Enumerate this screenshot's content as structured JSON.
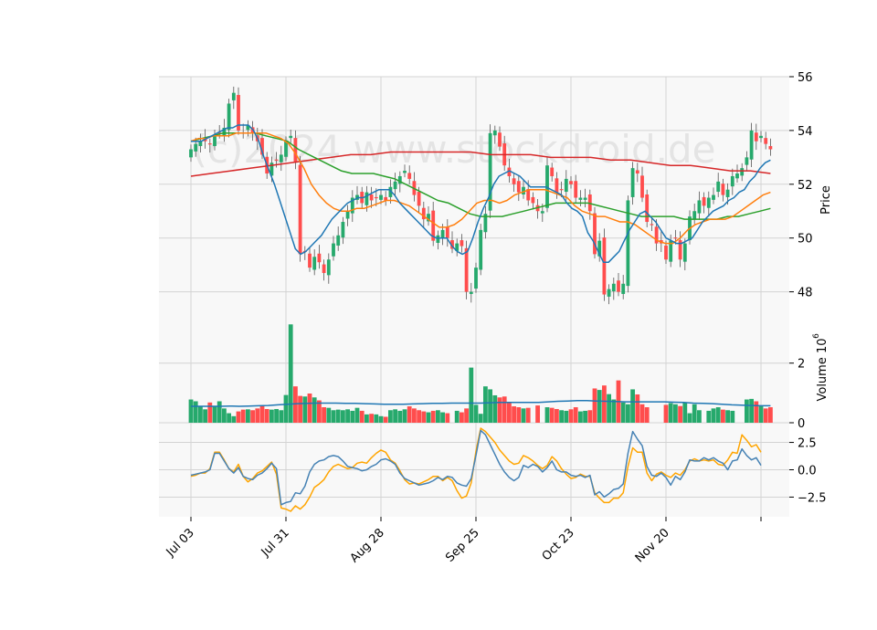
{
  "chart_data": {
    "type": "candlestick",
    "watermark": "(c)2024 www.stockdroid.de",
    "colors": {
      "up": "#26a96c",
      "down": "#ff4d4d",
      "ma_fast": "#1f77b4",
      "ma_mid": "#ff7f0e",
      "ma_slow": "#2ca02c",
      "ma_long": "#d62728",
      "vol_ma": "#1f77b4",
      "macd": "#4682b4",
      "signal": "#ffa500",
      "panel_bg": "#f8f8f8",
      "grid": "#d3d3d3"
    },
    "x_ticks": [
      {
        "i": 0,
        "label": "Jul 03"
      },
      {
        "i": 20,
        "label": "Jul 31"
      },
      {
        "i": 40,
        "label": "Aug 28"
      },
      {
        "i": 60,
        "label": "Sep 25"
      },
      {
        "i": 80,
        "label": "Oct 23"
      },
      {
        "i": 100,
        "label": "Nov 20"
      },
      {
        "i": 120,
        "label": ""
      }
    ],
    "price_panel": {
      "ylabel": "Price",
      "ylim": [
        46.9,
        56.0
      ],
      "yticks": [
        48,
        50,
        52,
        54,
        56
      ],
      "closes": [
        53.3,
        53.5,
        53.6,
        53.6,
        53.5,
        53.8,
        53.9,
        54.1,
        55.0,
        55.4,
        54.0,
        53.9,
        54.2,
        53.9,
        53.6,
        53.1,
        52.4,
        52.8,
        52.9,
        53.1,
        53.6,
        53.8,
        52.8,
        49.4,
        49.5,
        48.9,
        49.3,
        49.1,
        48.7,
        49.2,
        49.8,
        50.1,
        50.6,
        51.0,
        51.5,
        51.6,
        51.3,
        51.7,
        51.4,
        51.5,
        51.6,
        51.4,
        51.9,
        52.1,
        52.3,
        52.5,
        52.2,
        51.6,
        51.2,
        50.7,
        50.9,
        49.9,
        50.1,
        50.3,
        50.0,
        49.6,
        49.8,
        49.7,
        48.0,
        48.0,
        48.9,
        50.3,
        50.9,
        53.9,
        54.0,
        53.4,
        52.7,
        52.3,
        52.0,
        51.7,
        51.9,
        51.4,
        51.3,
        51.0,
        51.0,
        52.7,
        52.3,
        51.7,
        51.8,
        52.2,
        52.0,
        51.5,
        51.5,
        51.5,
        51.0,
        49.4,
        49.9,
        47.9,
        48.1,
        48.3,
        48.0,
        48.3,
        51.4,
        52.6,
        52.4,
        51.5,
        50.6,
        50.5,
        49.8,
        49.8,
        49.2,
        49.9,
        50.0,
        49.2,
        49.8,
        50.8,
        51.0,
        51.4,
        51.2,
        51.5,
        51.6,
        52.1,
        51.6,
        51.8,
        52.3,
        52.4,
        52.6,
        53.0,
        54.0,
        53.6,
        53.8,
        53.5,
        53.3
      ],
      "ma_fast": [
        53.6,
        53.6,
        53.6,
        53.7,
        53.8,
        53.9,
        54.0,
        54.1,
        54.1,
        54.2,
        54.2,
        54.2,
        54.0,
        53.6,
        53.0,
        52.5,
        52.0,
        51.4,
        50.8,
        50.2,
        49.6,
        49.4,
        49.5,
        49.7,
        49.9,
        50.1,
        50.4,
        50.7,
        50.9,
        51.1,
        51.3,
        51.4,
        51.5,
        51.5,
        51.6,
        51.7,
        51.8,
        51.8,
        51.8,
        51.6,
        51.3,
        51.1,
        50.9,
        50.7,
        50.5,
        50.3,
        50.1,
        50.0,
        50.0,
        50.0,
        49.7,
        49.5,
        49.4,
        49.5,
        50.0,
        50.6,
        51.1,
        51.5,
        52.0,
        52.3,
        52.4,
        52.5,
        52.4,
        52.3,
        52.1,
        51.9,
        51.9,
        51.9,
        51.9,
        51.8,
        51.7,
        51.6,
        51.3,
        51.1,
        51.0,
        50.8,
        50.2,
        49.9,
        49.5,
        49.1,
        49.1,
        49.3,
        49.5,
        49.9,
        50.3,
        50.6,
        50.9,
        51.0,
        50.8,
        50.6,
        50.3,
        50.0,
        49.9,
        49.8,
        49.8,
        49.9,
        50.0,
        50.3,
        50.6,
        50.8,
        51.0,
        51.1,
        51.2,
        51.4,
        51.5,
        51.7,
        51.8,
        52.1,
        52.3,
        52.6,
        52.8,
        52.9
      ],
      "ma_mid": [
        53.6,
        53.7,
        53.7,
        53.8,
        53.8,
        53.8,
        53.9,
        53.9,
        53.9,
        53.9,
        53.9,
        53.8,
        53.7,
        53.5,
        53.1,
        52.6,
        52.0,
        51.6,
        51.3,
        51.1,
        51.0,
        51.0,
        51.1,
        51.1,
        51.2,
        51.3,
        51.4,
        51.4,
        51.3,
        51.2,
        51.0,
        50.8,
        50.6,
        50.4,
        50.4,
        50.5,
        50.7,
        51.0,
        51.3,
        51.4,
        51.4,
        51.3,
        51.4,
        51.6,
        51.7,
        51.8,
        51.8,
        51.8,
        51.7,
        51.6,
        51.5,
        51.2,
        51.0,
        50.9,
        50.8,
        50.8,
        50.7,
        50.6,
        50.6,
        50.5,
        50.3,
        50.1,
        49.9,
        49.8,
        49.8,
        50.0,
        50.3,
        50.5,
        50.6,
        50.7,
        50.7,
        50.7,
        50.8,
        51.0,
        51.2,
        51.4,
        51.6,
        51.7
      ],
      "ma_slow": [
        53.6,
        53.7,
        53.8,
        53.9,
        53.9,
        53.9,
        53.9,
        53.8,
        53.7,
        53.6,
        53.3,
        53.1,
        52.9,
        52.7,
        52.5,
        52.4,
        52.4,
        52.4,
        52.3,
        52.2,
        52.0,
        51.8,
        51.6,
        51.4,
        51.3,
        51.1,
        50.9,
        50.8,
        50.8,
        50.8,
        50.9,
        51.0,
        51.1,
        51.2,
        51.3,
        51.3,
        51.3,
        51.3,
        51.2,
        51.1,
        51.0,
        50.9,
        50.8,
        50.8,
        50.8,
        50.8,
        50.7,
        50.7,
        50.7,
        50.7,
        50.8,
        50.8,
        50.9,
        51.0,
        51.1
      ],
      "ma_long": [
        52.3,
        52.4,
        52.5,
        52.6,
        52.7,
        52.8,
        52.9,
        53.0,
        53.1,
        53.1,
        53.2,
        53.2,
        53.2,
        53.2,
        53.2,
        53.1,
        53.1,
        53.1,
        53.0,
        53.0,
        53.0,
        52.9,
        52.9,
        52.8,
        52.7,
        52.7,
        52.6,
        52.5,
        52.5,
        52.4
      ]
    },
    "volume_panel": {
      "ylabel": "Volume  10^6",
      "ylim": [
        0,
        3.4
      ],
      "yticks": [
        0,
        2
      ],
      "values": [
        0.78,
        0.72,
        0.55,
        0.45,
        0.68,
        0.55,
        0.72,
        0.48,
        0.32,
        0.22,
        0.38,
        0.44,
        0.45,
        0.42,
        0.48,
        0.56,
        0.46,
        0.44,
        0.46,
        0.42,
        0.93,
        3.3,
        1.22,
        0.9,
        0.88,
        0.98,
        0.85,
        0.75,
        0.52,
        0.5,
        0.42,
        0.44,
        0.42,
        0.45,
        0.4,
        0.5,
        0.4,
        0.28,
        0.3,
        0.28,
        0.22,
        0.2,
        0.42,
        0.45,
        0.4,
        0.45,
        0.55,
        0.48,
        0.42,
        0.38,
        0.35,
        0.4,
        0.42,
        0.35,
        0.32,
        0.0,
        0.4,
        0.35,
        0.48,
        1.85,
        0.6,
        0.3,
        1.22,
        1.12,
        0.92,
        0.85,
        0.88,
        0.66,
        0.55,
        0.52,
        0.48,
        0.5,
        0.0,
        0.58,
        0.0,
        0.52,
        0.5,
        0.46,
        0.42,
        0.4,
        0.45,
        0.52,
        0.38,
        0.4,
        0.42,
        1.15,
        1.1,
        1.25,
        0.96,
        0.78,
        1.42,
        0.68,
        0.62,
        1.12,
        0.95,
        0.62,
        0.52,
        0.0,
        0.0,
        0.0,
        0.6,
        0.66,
        0.62,
        0.56,
        0.68,
        0.32,
        0.62,
        0.42,
        0.0,
        0.4,
        0.48,
        0.52,
        0.44,
        0.42,
        0.4,
        0.0,
        0.0,
        0.78,
        0.8,
        0.72,
        0.55,
        0.48,
        0.52
      ],
      "ma": [
        0.55,
        0.55,
        0.55,
        0.55,
        0.56,
        0.55,
        0.56,
        0.57,
        0.58,
        0.6,
        0.62,
        0.64,
        0.65,
        0.66,
        0.66,
        0.66,
        0.65,
        0.65,
        0.64,
        0.63,
        0.62,
        0.62,
        0.62,
        0.63,
        0.64,
        0.65,
        0.65,
        0.66,
        0.66,
        0.66,
        0.66,
        0.67,
        0.68,
        0.68,
        0.68,
        0.68,
        0.68,
        0.7,
        0.72,
        0.73,
        0.74,
        0.74,
        0.73,
        0.72,
        0.71,
        0.7,
        0.7,
        0.7,
        0.7,
        0.7,
        0.69,
        0.68,
        0.66,
        0.65,
        0.64,
        0.62,
        0.6,
        0.59,
        0.58,
        0.57,
        0.57
      ]
    },
    "macd_panel": {
      "ylim": [
        -4.3,
        4.3
      ],
      "yticks": [
        -2.5,
        0.0,
        2.5
      ],
      "ytick_labels": [
        "−2.5",
        "0.0",
        "2.5"
      ],
      "macd": [
        -0.5,
        -0.4,
        -0.3,
        -0.2,
        0.0,
        1.5,
        1.5,
        0.8,
        0.1,
        -0.3,
        0.2,
        -0.6,
        -0.8,
        -0.9,
        -0.5,
        -0.3,
        0.1,
        0.6,
        0.1,
        -3.2,
        -3.0,
        -2.9,
        -2.1,
        -2.2,
        -1.5,
        -0.2,
        0.5,
        0.8,
        0.9,
        1.2,
        1.3,
        1.2,
        0.8,
        0.3,
        0.2,
        0.1,
        -0.1,
        0.0,
        0.3,
        0.5,
        0.9,
        1.0,
        0.8,
        0.5,
        -0.3,
        -0.8,
        -1.0,
        -1.2,
        -1.4,
        -1.3,
        -1.2,
        -1.0,
        -0.7,
        -0.9,
        -0.6,
        -0.7,
        -1.2,
        -1.4,
        -1.5,
        -0.8,
        1.3,
        3.6,
        3.2,
        2.3,
        1.4,
        0.5,
        -0.2,
        -0.7,
        -1.0,
        -0.7,
        0.4,
        0.2,
        0.5,
        0.3,
        -0.2,
        0.2,
        0.8,
        0.0,
        -0.2,
        -0.2,
        -0.5,
        -0.6,
        -0.5,
        -0.7,
        -0.5,
        -2.3,
        -2.0,
        -2.5,
        -2.2,
        -1.8,
        -1.7,
        -1.3,
        1.5,
        3.5,
        2.8,
        2.2,
        0.3,
        -0.5,
        -0.6,
        -0.3,
        -0.7,
        -1.4,
        -0.6,
        -0.9,
        -0.2,
        0.9,
        0.8,
        0.8,
        1.1,
        0.9,
        1.1,
        0.8,
        0.6,
        0.0,
        0.8,
        0.9,
        1.9,
        1.3,
        0.9,
        1.1,
        0.4
      ],
      "signal": [
        -0.6,
        -0.5,
        -0.3,
        -0.3,
        0.1,
        1.6,
        1.6,
        0.9,
        0.1,
        -0.2,
        0.5,
        -0.6,
        -1.1,
        -0.8,
        -0.3,
        -0.1,
        0.3,
        0.7,
        -0.4,
        -3.5,
        -3.6,
        -3.8,
        -3.3,
        -3.6,
        -3.2,
        -2.5,
        -1.6,
        -1.3,
        -0.9,
        -0.2,
        0.3,
        0.5,
        0.3,
        0.1,
        0.2,
        0.6,
        0.7,
        0.6,
        1.1,
        1.5,
        1.8,
        1.6,
        0.9,
        0.6,
        -0.1,
        -0.9,
        -1.3,
        -1.2,
        -1.3,
        -1.1,
        -0.9,
        -0.6,
        -0.6,
        -1.0,
        -0.7,
        -1.0,
        -1.9,
        -2.6,
        -2.4,
        -1.2,
        1.7,
        3.8,
        3.5,
        3.0,
        2.5,
        1.8,
        1.3,
        0.8,
        0.5,
        0.6,
        1.3,
        1.1,
        0.8,
        0.4,
        0.1,
        0.4,
        1.2,
        0.8,
        0.1,
        -0.4,
        -0.8,
        -0.7,
        -0.4,
        -0.6,
        -0.6,
        -2.1,
        -2.6,
        -3.0,
        -3.0,
        -2.6,
        -2.6,
        -2.1,
        0.3,
        2.0,
        1.6,
        1.6,
        -0.3,
        -1.0,
        -0.4,
        -0.2,
        -0.5,
        -0.7,
        -0.3,
        -0.5,
        0.0,
        0.8,
        1.0,
        0.8,
        0.9,
        0.8,
        0.9,
        0.5,
        0.4,
        0.9,
        1.6,
        1.5,
        3.2,
        2.7,
        2.1,
        2.3,
        1.6
      ]
    }
  }
}
